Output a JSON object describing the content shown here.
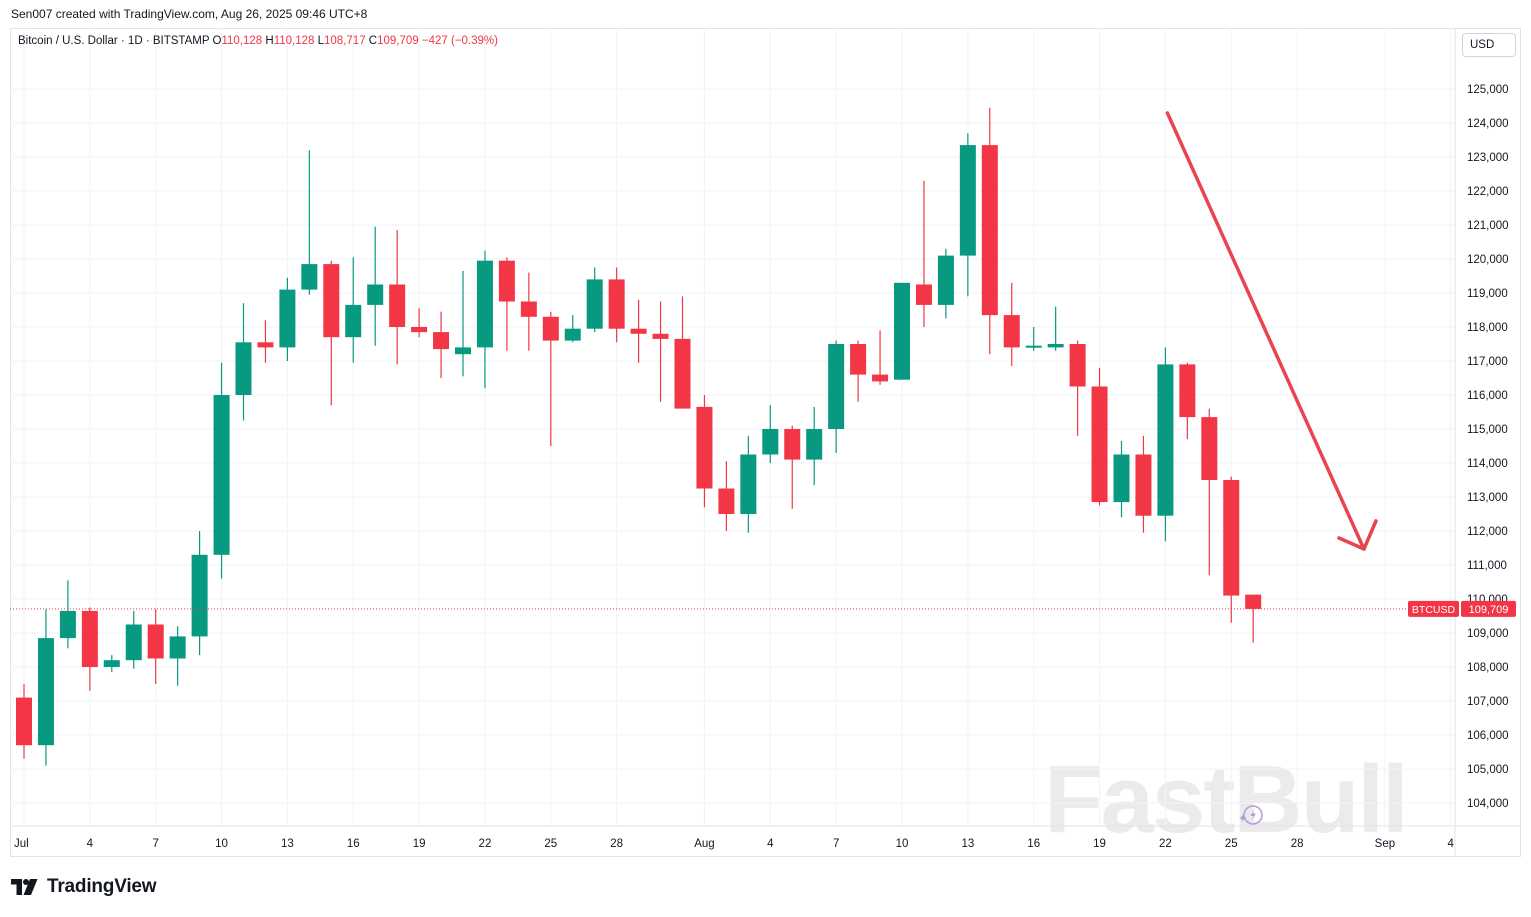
{
  "attribution": "Sen007 created with TradingView.com, Aug 26, 2025 09:46 UTC+8",
  "legend": {
    "symbol": "Bitcoin / U.S. Dollar · 1D · BITSTAMP",
    "open_label": "O",
    "open": "110,128",
    "high_label": "H",
    "high": "110,128",
    "low_label": "L",
    "low": "108,717",
    "close_label": "C",
    "close": "109,709",
    "change": "−427 (−0.39%)"
  },
  "currency": "USD",
  "colors": {
    "up": "#089981",
    "down": "#f23645",
    "grid": "#f0f3fa",
    "arrow": "#e84550",
    "watermark": "#ebebeb"
  },
  "price_tag": {
    "symbol": "BTCUSD",
    "value": "109,709",
    "price": 109709
  },
  "watermark": "FastBull",
  "footer_logo": "TradingView",
  "chart_data": {
    "type": "candlestick",
    "title": "Bitcoin / U.S. Dollar · 1D · BITSTAMP",
    "ylim": [
      103500,
      126000
    ],
    "y_ticks": [
      104000,
      105000,
      106000,
      107000,
      108000,
      109000,
      110000,
      111000,
      112000,
      113000,
      114000,
      115000,
      116000,
      117000,
      118000,
      119000,
      120000,
      121000,
      122000,
      123000,
      124000,
      125000
    ],
    "x_ticks": [
      {
        "label": "Jul",
        "index": 0
      },
      {
        "label": "4",
        "index": 3
      },
      {
        "label": "7",
        "index": 6
      },
      {
        "label": "10",
        "index": 9
      },
      {
        "label": "13",
        "index": 12
      },
      {
        "label": "16",
        "index": 15
      },
      {
        "label": "19",
        "index": 18
      },
      {
        "label": "22",
        "index": 21
      },
      {
        "label": "25",
        "index": 24
      },
      {
        "label": "28",
        "index": 27
      },
      {
        "label": "Aug",
        "index": 31
      },
      {
        "label": "4",
        "index": 34
      },
      {
        "label": "7",
        "index": 37
      },
      {
        "label": "10",
        "index": 40
      },
      {
        "label": "13",
        "index": 43
      },
      {
        "label": "16",
        "index": 46
      },
      {
        "label": "19",
        "index": 49
      },
      {
        "label": "22",
        "index": 52
      },
      {
        "label": "25",
        "index": 55
      },
      {
        "label": "28",
        "index": 58
      },
      {
        "label": "Sep",
        "index": 62
      },
      {
        "label": "4",
        "index": 65
      }
    ],
    "candles": [
      {
        "date": "Jul 1",
        "o": 107100,
        "h": 107500,
        "l": 105300,
        "c": 105700
      },
      {
        "date": "Jul 2",
        "o": 105700,
        "h": 109700,
        "l": 105100,
        "c": 108850
      },
      {
        "date": "Jul 3",
        "o": 108850,
        "h": 110550,
        "l": 108550,
        "c": 109650
      },
      {
        "date": "Jul 4",
        "o": 109650,
        "h": 109750,
        "l": 107300,
        "c": 108000
      },
      {
        "date": "Jul 5",
        "o": 108000,
        "h": 108350,
        "l": 107850,
        "c": 108200
      },
      {
        "date": "Jul 6",
        "o": 108200,
        "h": 109650,
        "l": 107950,
        "c": 109250
      },
      {
        "date": "Jul 7",
        "o": 109250,
        "h": 109700,
        "l": 107500,
        "c": 108250
      },
      {
        "date": "Jul 8",
        "o": 108250,
        "h": 109200,
        "l": 107450,
        "c": 108900
      },
      {
        "date": "Jul 9",
        "o": 108900,
        "h": 112000,
        "l": 108350,
        "c": 111300
      },
      {
        "date": "Jul 10",
        "o": 111300,
        "h": 116950,
        "l": 110600,
        "c": 116000
      },
      {
        "date": "Jul 11",
        "o": 116000,
        "h": 118700,
        "l": 115250,
        "c": 117550
      },
      {
        "date": "Jul 12",
        "o": 117550,
        "h": 118200,
        "l": 116950,
        "c": 117400
      },
      {
        "date": "Jul 13",
        "o": 117400,
        "h": 119450,
        "l": 117000,
        "c": 119100
      },
      {
        "date": "Jul 14",
        "o": 119100,
        "h": 123200,
        "l": 118950,
        "c": 119850
      },
      {
        "date": "Jul 15",
        "o": 119850,
        "h": 119950,
        "l": 115700,
        "c": 117700
      },
      {
        "date": "Jul 16",
        "o": 117700,
        "h": 120050,
        "l": 116950,
        "c": 118650
      },
      {
        "date": "Jul 17",
        "o": 118650,
        "h": 120950,
        "l": 117450,
        "c": 119250
      },
      {
        "date": "Jul 18",
        "o": 119250,
        "h": 120850,
        "l": 116900,
        "c": 118000
      },
      {
        "date": "Jul 19",
        "o": 118000,
        "h": 118550,
        "l": 117700,
        "c": 117850
      },
      {
        "date": "Jul 20",
        "o": 117850,
        "h": 118450,
        "l": 116500,
        "c": 117350
      },
      {
        "date": "Jul 21",
        "o": 117200,
        "h": 119650,
        "l": 116550,
        "c": 117400
      },
      {
        "date": "Jul 22",
        "o": 117400,
        "h": 120250,
        "l": 116200,
        "c": 119950
      },
      {
        "date": "Jul 23",
        "o": 119950,
        "h": 120050,
        "l": 117300,
        "c": 118750
      },
      {
        "date": "Jul 24",
        "o": 118750,
        "h": 119600,
        "l": 117300,
        "c": 118300
      },
      {
        "date": "Jul 25",
        "o": 118300,
        "h": 118450,
        "l": 114500,
        "c": 117600
      },
      {
        "date": "Jul 26",
        "o": 117600,
        "h": 118350,
        "l": 117550,
        "c": 117950
      },
      {
        "date": "Jul 27",
        "o": 117950,
        "h": 119750,
        "l": 117850,
        "c": 119400
      },
      {
        "date": "Jul 28",
        "o": 119400,
        "h": 119750,
        "l": 117550,
        "c": 117950
      },
      {
        "date": "Jul 29",
        "o": 117950,
        "h": 118800,
        "l": 116950,
        "c": 117800
      },
      {
        "date": "Jul 30",
        "o": 117800,
        "h": 118750,
        "l": 115800,
        "c": 117650
      },
      {
        "date": "Jul 31",
        "o": 117650,
        "h": 118900,
        "l": 115700,
        "c": 115600
      },
      {
        "date": "Aug 1",
        "o": 115650,
        "h": 116000,
        "l": 112700,
        "c": 113250
      },
      {
        "date": "Aug 2",
        "o": 113250,
        "h": 114050,
        "l": 112000,
        "c": 112500
      },
      {
        "date": "Aug 3",
        "o": 112500,
        "h": 114800,
        "l": 111950,
        "c": 114250
      },
      {
        "date": "Aug 4",
        "o": 114250,
        "h": 115700,
        "l": 114000,
        "c": 115000
      },
      {
        "date": "Aug 5",
        "o": 115000,
        "h": 115100,
        "l": 112650,
        "c": 114100
      },
      {
        "date": "Aug 6",
        "o": 114100,
        "h": 115650,
        "l": 113350,
        "c": 115000
      },
      {
        "date": "Aug 7",
        "o": 115000,
        "h": 117600,
        "l": 114300,
        "c": 117500
      },
      {
        "date": "Aug 8",
        "o": 117500,
        "h": 117600,
        "l": 115800,
        "c": 116600
      },
      {
        "date": "Aug 9",
        "o": 116600,
        "h": 117900,
        "l": 116300,
        "c": 116400
      },
      {
        "date": "Aug 10",
        "o": 116450,
        "h": 119250,
        "l": 116450,
        "c": 119300
      },
      {
        "date": "Aug 11",
        "o": 119250,
        "h": 122300,
        "l": 118000,
        "c": 118650
      },
      {
        "date": "Aug 12",
        "o": 118650,
        "h": 120300,
        "l": 118250,
        "c": 120100
      },
      {
        "date": "Aug 13",
        "o": 120100,
        "h": 123700,
        "l": 118900,
        "c": 123350
      },
      {
        "date": "Aug 14",
        "o": 123350,
        "h": 124450,
        "l": 117200,
        "c": 118350
      },
      {
        "date": "Aug 15",
        "o": 118350,
        "h": 119300,
        "l": 116850,
        "c": 117400
      },
      {
        "date": "Aug 16",
        "o": 117400,
        "h": 118000,
        "l": 117300,
        "c": 117450
      },
      {
        "date": "Aug 17",
        "o": 117400,
        "h": 118600,
        "l": 117300,
        "c": 117500
      },
      {
        "date": "Aug 18",
        "o": 117500,
        "h": 117600,
        "l": 114800,
        "c": 116250
      },
      {
        "date": "Aug 19",
        "o": 116250,
        "h": 116800,
        "l": 112750,
        "c": 112850
      },
      {
        "date": "Aug 20",
        "o": 112850,
        "h": 114650,
        "l": 112400,
        "c": 114250
      },
      {
        "date": "Aug 21",
        "o": 114250,
        "h": 114800,
        "l": 111950,
        "c": 112450
      },
      {
        "date": "Aug 22",
        "o": 112450,
        "h": 117400,
        "l": 111700,
        "c": 116900
      },
      {
        "date": "Aug 23",
        "o": 116900,
        "h": 116950,
        "l": 114700,
        "c": 115350
      },
      {
        "date": "Aug 24",
        "o": 115350,
        "h": 115600,
        "l": 110700,
        "c": 113500
      },
      {
        "date": "Aug 25",
        "o": 113500,
        "h": 113600,
        "l": 109300,
        "c": 110100
      },
      {
        "date": "Aug 26",
        "o": 110128,
        "h": 110128,
        "l": 108717,
        "c": 109709
      }
    ],
    "annotation": {
      "type": "arrow",
      "direction": "down",
      "from": {
        "index": 52,
        "price": 124000
      },
      "to": {
        "index": 61,
        "price": 112000
      }
    }
  }
}
